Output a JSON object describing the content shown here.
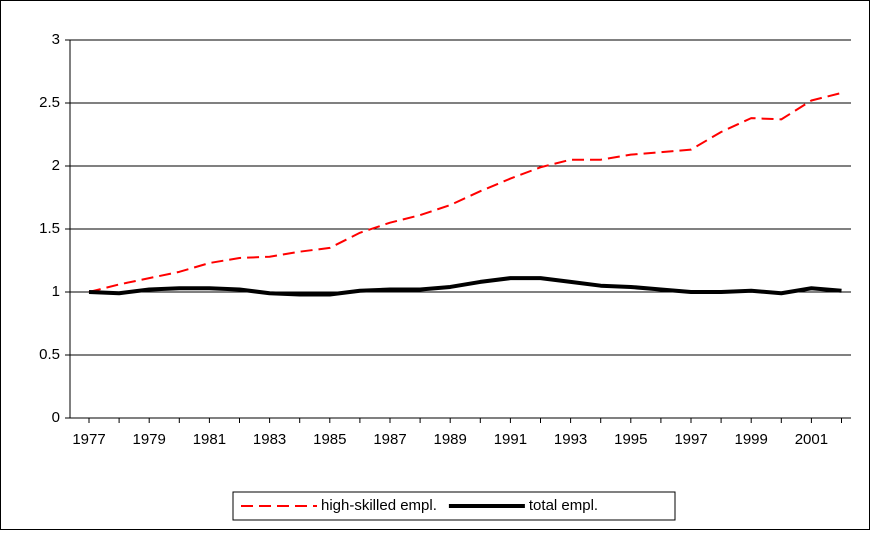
{
  "chart_data": {
    "type": "line",
    "categories": [
      "1977",
      null,
      "1979",
      null,
      "1981",
      null,
      "1983",
      null,
      "1985",
      null,
      "1987",
      null,
      "1989",
      null,
      "1991",
      null,
      "1993",
      null,
      "1995",
      null,
      "1997",
      null,
      "1999",
      null,
      "2001",
      null
    ],
    "series": [
      {
        "name": "high-skilled empl.",
        "color": "#ff0000",
        "dashed": true,
        "values": [
          1.0,
          1.06,
          1.11,
          1.16,
          1.23,
          1.27,
          1.28,
          1.32,
          1.35,
          1.47,
          1.55,
          1.61,
          1.69,
          1.8,
          1.9,
          1.99,
          2.05,
          2.05,
          2.09,
          2.11,
          2.13,
          2.27,
          2.38,
          2.37,
          2.52,
          2.58
        ]
      },
      {
        "name": "total empl.",
        "color": "#000000",
        "dashed": false,
        "values": [
          1.0,
          0.99,
          1.02,
          1.03,
          1.03,
          1.02,
          0.99,
          0.98,
          0.98,
          1.01,
          1.02,
          1.02,
          1.04,
          1.08,
          1.11,
          1.11,
          1.08,
          1.05,
          1.04,
          1.02,
          1.0,
          1.0,
          1.01,
          0.99,
          1.03,
          1.01
        ]
      }
    ],
    "ylim": [
      0,
      3
    ],
    "yticks": [
      0,
      0.5,
      1,
      1.5,
      2,
      2.5,
      3
    ],
    "grid": true,
    "legend": "bottom"
  }
}
